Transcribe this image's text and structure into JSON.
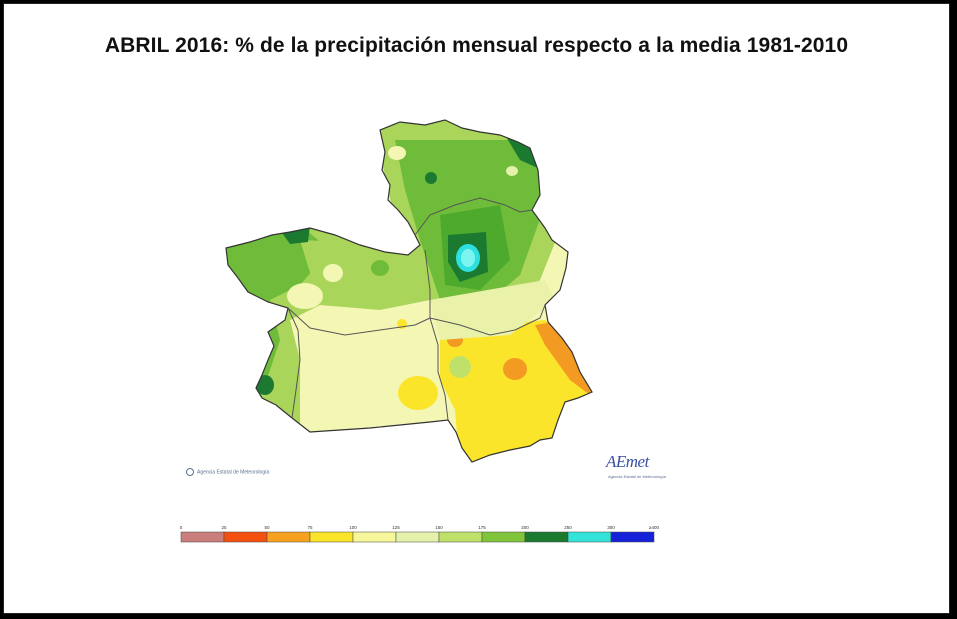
{
  "title": "ABRIL 2016: % de la precipitación mensual respecto a la media 1981-2010",
  "credit": "Agencia Estatal de Meteorología",
  "logo": {
    "text": "AEmet",
    "subtitle": "Agencia Estatal de Meteorología"
  },
  "legend": {
    "ticks": [
      "0",
      "25",
      "50",
      "75",
      "100",
      "125",
      "150",
      "175",
      "200",
      "250",
      "300",
      "≥400"
    ],
    "colors": [
      "#c97d7d",
      "#f4500f",
      "#f7a21f",
      "#fae42a",
      "#f6f79a",
      "#e4f1aa",
      "#bfe16a",
      "#7fc43a",
      "#1c7a30",
      "#33e3d8",
      "#1b6ef0",
      "#1522d8"
    ]
  },
  "map": {
    "region": "Castilla-La Mancha",
    "scale_colors": {
      "very_dry": "#f39a22",
      "dry": "#fbe52b",
      "normal": "#f4f7b4",
      "wet": "#cbe585",
      "very_wet": "#8ccc48",
      "extremely_wet": "#4eaa2c",
      "max_wet": "#1c7a30",
      "peak": "#2ee0e0"
    }
  }
}
